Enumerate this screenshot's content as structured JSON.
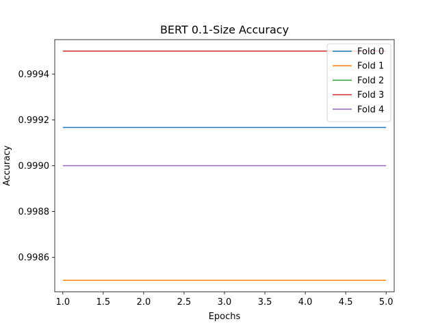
{
  "chart_data": {
    "type": "line",
    "title": "BERT 0.1-Size Accuracy",
    "xlabel": "Epochs",
    "ylabel": "Accuracy",
    "xlim": [
      0.9,
      5.1
    ],
    "ylim": [
      0.99845,
      0.99955
    ],
    "xticks": [
      1.0,
      1.5,
      2.0,
      2.5,
      3.0,
      3.5,
      4.0,
      4.5,
      5.0
    ],
    "xtick_labels": [
      "1.0",
      "1.5",
      "2.0",
      "2.5",
      "3.0",
      "3.5",
      "4.0",
      "4.5",
      "5.0"
    ],
    "yticks": [
      0.9986,
      0.9988,
      0.999,
      0.9992,
      0.9994
    ],
    "ytick_labels": [
      "0.9986",
      "0.9988",
      "0.9990",
      "0.9992",
      "0.9994"
    ],
    "x": [
      1,
      2,
      3,
      4,
      5
    ],
    "series": [
      {
        "name": "Fold 0",
        "color": "#1f77b4",
        "values": [
          0.999167,
          0.999167,
          0.999167,
          0.999167,
          0.999167
        ]
      },
      {
        "name": "Fold 1",
        "color": "#ff7f0e",
        "values": [
          0.9985,
          0.9985,
          0.9985,
          0.9985,
          0.9985
        ]
      },
      {
        "name": "Fold 2",
        "color": "#2ca02c",
        "values": [
          0.9995,
          0.9995,
          0.9995,
          0.9995,
          0.9995
        ]
      },
      {
        "name": "Fold 3",
        "color": "#d62728",
        "values": [
          0.9995,
          0.9995,
          0.9995,
          0.9995,
          0.9995
        ]
      },
      {
        "name": "Fold 4",
        "color": "#9467bd",
        "values": [
          0.999,
          0.999,
          0.999,
          0.999,
          0.999
        ]
      }
    ],
    "grid": false,
    "legend_position": "top-right"
  }
}
